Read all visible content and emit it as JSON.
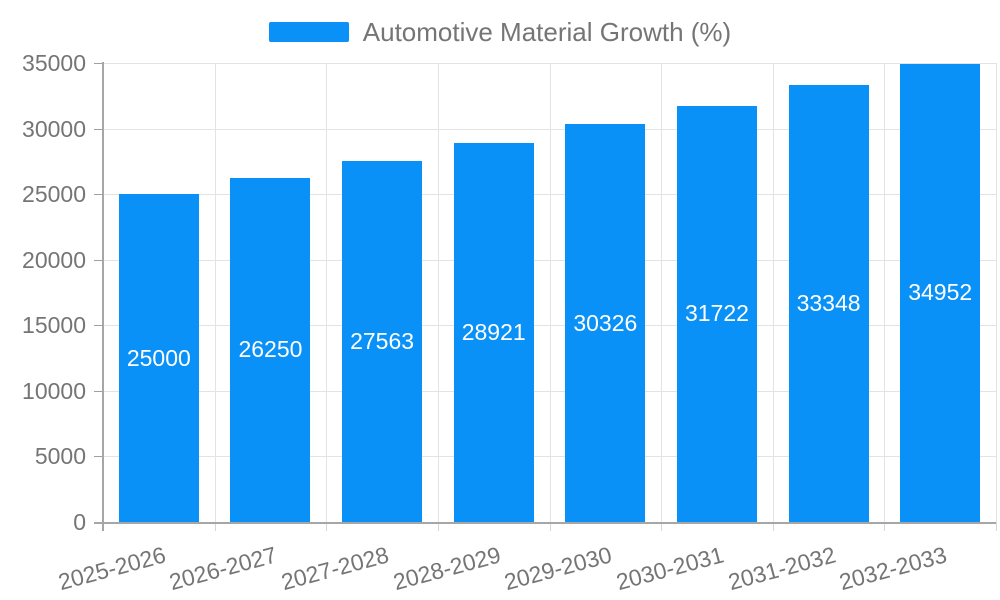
{
  "chart_data": {
    "type": "bar",
    "title": "",
    "legend": {
      "label": "Automotive Material Growth (%)",
      "position": "top-center"
    },
    "categories": [
      "2025-2026",
      "2026-2027",
      "2027-2028",
      "2028-2029",
      "2029-2030",
      "2030-2031",
      "2031-2032",
      "2032-2033"
    ],
    "series": [
      {
        "name": "Automotive Material Growth (%)",
        "values": [
          25000,
          26250,
          27563,
          28921,
          30326,
          31722,
          33348,
          34952
        ],
        "data_labels": [
          "25000",
          "26250",
          "27563",
          "28921",
          "30326",
          "31722",
          "33348",
          "34952"
        ]
      }
    ],
    "xlabel": "",
    "ylabel": "",
    "ylim": [
      0,
      35000
    ],
    "y_tick_values": [
      0,
      5000,
      10000,
      15000,
      20000,
      25000,
      30000,
      35000
    ],
    "y_tick_labels": [
      "0",
      "5000",
      "10000",
      "15000",
      "20000",
      "25000",
      "30000",
      "35000"
    ],
    "grid": "both",
    "colors": {
      "bar": "#0a91f7",
      "bar_value_text": "#ffffff",
      "axis_text": "#757575",
      "legend_text": "#757575",
      "gridline": "#e3e3e3",
      "axis_line": "#a6a6a6",
      "background": "#ffffff"
    }
  }
}
